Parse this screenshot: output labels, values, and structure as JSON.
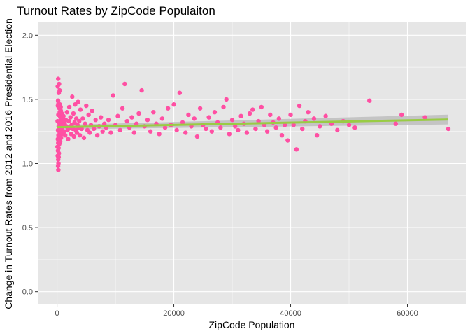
{
  "chart_data": {
    "type": "scatter",
    "title": "Turnout Rates by ZipCode Populaiton",
    "xlabel": "ZipCode Population",
    "ylabel": "Change in Turnout Rates from 2012 and 2016 Presidential Election",
    "xlim": [
      -3300,
      70000
    ],
    "ylim": [
      -0.1,
      2.1
    ],
    "x_ticks": [
      0,
      20000,
      40000,
      60000
    ],
    "x_tick_labels": [
      "0",
      "20000",
      "40000",
      "60000"
    ],
    "y_ticks": [
      0.0,
      0.5,
      1.0,
      1.5,
      2.0
    ],
    "y_tick_labels": [
      "0.0",
      "0.5",
      "1.0",
      "1.5",
      "2.0"
    ],
    "grid": true,
    "legend": "none",
    "colors": {
      "panel": "#e6e6e6",
      "grid": "#ffffff",
      "points": "#ff4fa3",
      "trend_line": "#99cc44",
      "confidence_band": "#bdbdbd"
    },
    "trend_line": {
      "x": [
        0,
        67000
      ],
      "y": [
        1.283,
        1.343
      ],
      "ci_lower": [
        1.266,
        1.305
      ],
      "ci_upper": [
        1.3,
        1.381
      ]
    },
    "points": [
      [
        200,
        1.66
      ],
      [
        350,
        1.62
      ],
      [
        120,
        1.6
      ],
      [
        450,
        1.57
      ],
      [
        300,
        1.55
      ],
      [
        180,
        1.49
      ],
      [
        250,
        1.47
      ],
      [
        500,
        1.46
      ],
      [
        150,
        1.45
      ],
      [
        400,
        1.43
      ],
      [
        650,
        1.41
      ],
      [
        800,
        1.39
      ],
      [
        220,
        1.38
      ],
      [
        560,
        1.36
      ],
      [
        700,
        1.35
      ],
      [
        900,
        1.34
      ],
      [
        100,
        1.33
      ],
      [
        330,
        1.32
      ],
      [
        600,
        1.31
      ],
      [
        1000,
        1.3
      ],
      [
        280,
        1.29
      ],
      [
        480,
        1.28
      ],
      [
        750,
        1.27
      ],
      [
        160,
        1.26
      ],
      [
        380,
        1.25
      ],
      [
        520,
        1.24
      ],
      [
        880,
        1.23
      ],
      [
        240,
        1.22
      ],
      [
        420,
        1.21
      ],
      [
        680,
        1.2
      ],
      [
        140,
        1.19
      ],
      [
        310,
        1.18
      ],
      [
        540,
        1.17
      ],
      [
        200,
        1.16
      ],
      [
        370,
        1.15
      ],
      [
        80,
        1.13
      ],
      [
        260,
        1.12
      ],
      [
        160,
        1.1
      ],
      [
        320,
        1.08
      ],
      [
        120,
        1.06
      ],
      [
        280,
        1.05
      ],
      [
        200,
        1.03
      ],
      [
        240,
        1.0
      ],
      [
        180,
        0.98
      ],
      [
        220,
        0.95
      ],
      [
        460,
        1.4
      ],
      [
        620,
        1.44
      ],
      [
        820,
        1.33
      ],
      [
        1100,
        1.37
      ],
      [
        1200,
        1.25
      ],
      [
        1300,
        1.31
      ],
      [
        1400,
        1.22
      ],
      [
        1500,
        1.34
      ],
      [
        1600,
        1.29
      ],
      [
        1700,
        1.4
      ],
      [
        1800,
        1.26
      ],
      [
        1900,
        1.19
      ],
      [
        2000,
        1.33
      ],
      [
        2100,
        1.44
      ],
      [
        2200,
        1.28
      ],
      [
        2300,
        1.36
      ],
      [
        2400,
        1.23
      ],
      [
        2500,
        1.3
      ],
      [
        2600,
        1.52
      ],
      [
        2700,
        1.27
      ],
      [
        2800,
        1.39
      ],
      [
        2900,
        1.21
      ],
      [
        3000,
        1.32
      ],
      [
        3100,
        1.46
      ],
      [
        3200,
        1.26
      ],
      [
        3300,
        1.35
      ],
      [
        3400,
        1.24
      ],
      [
        3500,
        1.3
      ],
      [
        3600,
        1.48
      ],
      [
        3700,
        1.28
      ],
      [
        3800,
        1.33
      ],
      [
        3900,
        1.22
      ],
      [
        4000,
        1.42
      ],
      [
        4200,
        1.27
      ],
      [
        4400,
        1.35
      ],
      [
        4600,
        1.2
      ],
      [
        4800,
        1.31
      ],
      [
        5000,
        1.45
      ],
      [
        5200,
        1.26
      ],
      [
        5400,
        1.38
      ],
      [
        5600,
        1.24
      ],
      [
        5800,
        1.3
      ],
      [
        6000,
        1.41
      ],
      [
        6300,
        1.27
      ],
      [
        6600,
        1.34
      ],
      [
        6900,
        1.22
      ],
      [
        7200,
        1.29
      ],
      [
        7500,
        1.36
      ],
      [
        7800,
        1.25
      ],
      [
        8100,
        1.31
      ],
      [
        8400,
        1.28
      ],
      [
        8800,
        1.34
      ],
      [
        9200,
        1.24
      ],
      [
        9600,
        1.53
      ],
      [
        10000,
        1.3
      ],
      [
        10400,
        1.37
      ],
      [
        10800,
        1.26
      ],
      [
        11200,
        1.43
      ],
      [
        11600,
        1.62
      ],
      [
        12000,
        1.33
      ],
      [
        12400,
        1.28
      ],
      [
        12800,
        1.36
      ],
      [
        13200,
        1.24
      ],
      [
        13600,
        1.31
      ],
      [
        14000,
        1.39
      ],
      [
        14500,
        1.57
      ],
      [
        15000,
        1.29
      ],
      [
        15500,
        1.34
      ],
      [
        16000,
        1.25
      ],
      [
        16500,
        1.4
      ],
      [
        17000,
        1.31
      ],
      [
        17500,
        1.23
      ],
      [
        18000,
        1.35
      ],
      [
        18500,
        1.28
      ],
      [
        19000,
        1.43
      ],
      [
        19500,
        1.3
      ],
      [
        20000,
        1.46
      ],
      [
        20500,
        1.26
      ],
      [
        21000,
        1.55
      ],
      [
        21500,
        1.32
      ],
      [
        22000,
        1.24
      ],
      [
        22500,
        1.38
      ],
      [
        23000,
        1.29
      ],
      [
        23500,
        1.35
      ],
      [
        24000,
        1.21
      ],
      [
        24500,
        1.43
      ],
      [
        25000,
        1.3
      ],
      [
        25500,
        1.27
      ],
      [
        26000,
        1.36
      ],
      [
        26500,
        1.25
      ],
      [
        27000,
        1.4
      ],
      [
        27500,
        1.32
      ],
      [
        28000,
        1.28
      ],
      [
        28500,
        1.44
      ],
      [
        29000,
        1.5
      ],
      [
        29500,
        1.23
      ],
      [
        30000,
        1.34
      ],
      [
        30500,
        1.29
      ],
      [
        31000,
        1.26
      ],
      [
        31500,
        1.37
      ],
      [
        32000,
        1.31
      ],
      [
        32500,
        1.24
      ],
      [
        33000,
        1.39
      ],
      [
        33500,
        1.42
      ],
      [
        34000,
        1.27
      ],
      [
        34500,
        1.33
      ],
      [
        35000,
        1.44
      ],
      [
        35500,
        1.3
      ],
      [
        36000,
        1.25
      ],
      [
        36500,
        1.38
      ],
      [
        37000,
        1.32
      ],
      [
        37500,
        1.28
      ],
      [
        38000,
        1.35
      ],
      [
        38500,
        1.22
      ],
      [
        39000,
        1.3
      ],
      [
        39500,
        1.18
      ],
      [
        40000,
        1.38
      ],
      [
        40500,
        1.3
      ],
      [
        41000,
        1.11
      ],
      [
        41500,
        1.45
      ],
      [
        42000,
        1.27
      ],
      [
        42500,
        1.33
      ],
      [
        43000,
        1.4
      ],
      [
        44000,
        1.35
      ],
      [
        44500,
        1.22
      ],
      [
        45000,
        1.29
      ],
      [
        46000,
        1.37
      ],
      [
        47000,
        1.31
      ],
      [
        48000,
        1.26
      ],
      [
        49000,
        1.33
      ],
      [
        50000,
        1.3
      ],
      [
        51000,
        1.28
      ],
      [
        53500,
        1.49
      ],
      [
        58000,
        1.31
      ],
      [
        59000,
        1.38
      ],
      [
        63000,
        1.36
      ],
      [
        67000,
        1.27
      ]
    ]
  }
}
